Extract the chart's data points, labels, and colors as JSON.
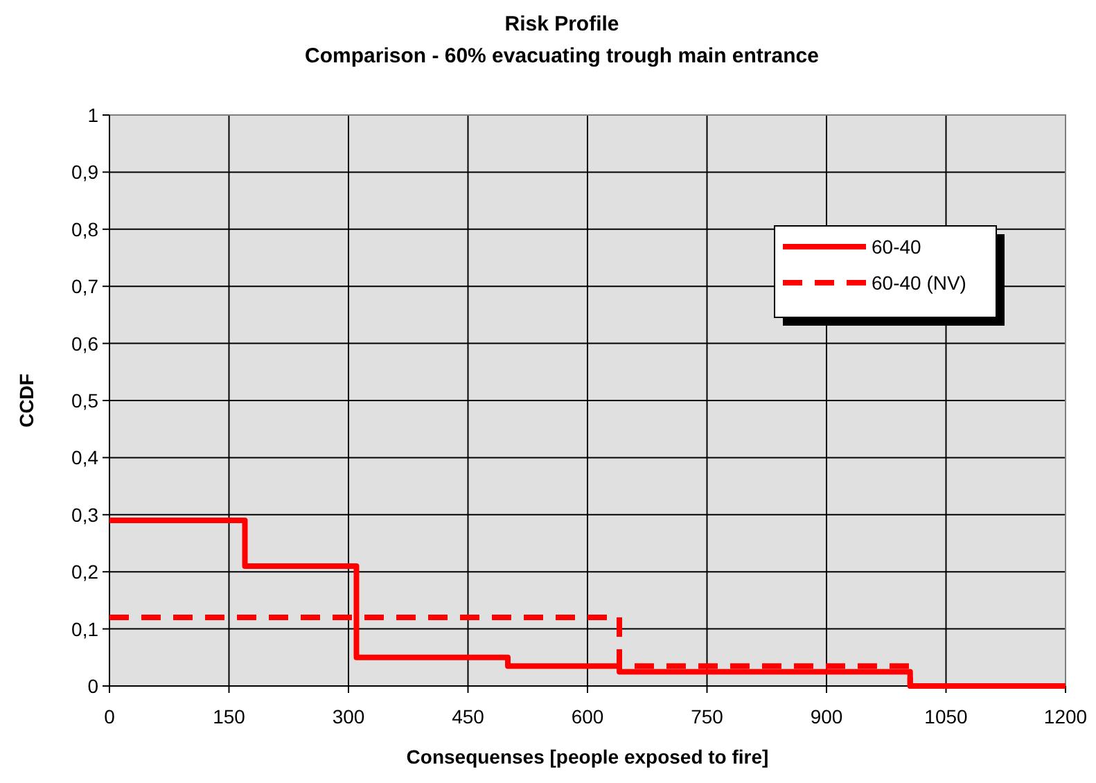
{
  "chart_data": {
    "type": "step",
    "title": "Risk Profile",
    "subtitle": "Comparison - 60% evacuating trough main entrance",
    "xlabel": "Consequenses [people exposed to fire]",
    "ylabel": "CCDF",
    "series": [
      {
        "name": "60-40",
        "color": "#ff0000",
        "line_style": "solid",
        "x": [
          0,
          170,
          310,
          500,
          640,
          1005,
          1200
        ],
        "values": [
          0.29,
          0.21,
          0.05,
          0.035,
          0.025,
          0,
          0
        ]
      },
      {
        "name": "60-40 (NV)",
        "color": "#ff0000",
        "line_style": "dashed",
        "x": [
          0,
          640,
          1005,
          1200
        ],
        "values": [
          0.12,
          0.035,
          0,
          0
        ]
      }
    ],
    "xlim": [
      0,
      1200
    ],
    "xticks": [
      0,
      150,
      300,
      450,
      600,
      750,
      900,
      1050,
      1200
    ],
    "ylim": [
      0,
      1
    ],
    "yticks": [
      0,
      {
        "value": 0.1,
        "label": "0,1"
      },
      {
        "value": 0.2,
        "label": "0,2"
      },
      {
        "value": 0.3,
        "label": "0,3"
      },
      {
        "value": 0.4,
        "label": "0,4"
      },
      {
        "value": 0.5,
        "label": "0,5"
      },
      {
        "value": 0.6,
        "label": "0,6"
      },
      {
        "value": 0.7,
        "label": "0,7"
      },
      {
        "value": 0.8,
        "label": "0,8"
      },
      {
        "value": 0.9,
        "label": "0,9"
      },
      1
    ],
    "grid": true,
    "legend": "top right",
    "marker": "none"
  }
}
